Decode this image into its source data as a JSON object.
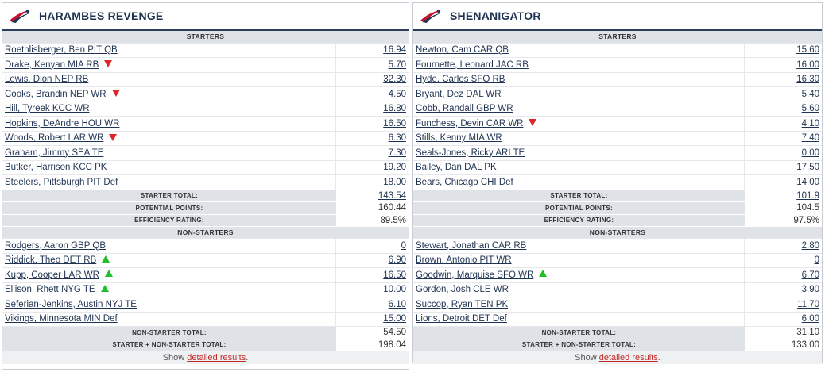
{
  "icons": {
    "team_logo": "swoosh-logo-icon",
    "status_down": "red-down-triangle-icon",
    "status_up": "green-up-triangle-icon"
  },
  "colors": {
    "navy": "#1f3352",
    "section_bg": "#dfe3e8",
    "down": "#e0262d",
    "up": "#1fbf2a",
    "link_red": "#c32a2a"
  },
  "left": {
    "team_name": "HARAMBES REVENGE",
    "starters_label": "STARTERS",
    "starters": [
      {
        "name": "Roethlisberger, Ben PIT QB",
        "points": "16.94",
        "status": ""
      },
      {
        "name": "Drake, Kenyan MIA RB",
        "points": "5.70",
        "status": "down"
      },
      {
        "name": "Lewis, Dion NEP RB",
        "points": "32.30",
        "status": ""
      },
      {
        "name": "Cooks, Brandin NEP WR",
        "points": "4.50",
        "status": "down"
      },
      {
        "name": "Hill, Tyreek KCC WR",
        "points": "16.80",
        "status": ""
      },
      {
        "name": "Hopkins, DeAndre HOU WR",
        "points": "16.50",
        "status": ""
      },
      {
        "name": "Woods, Robert LAR WR",
        "points": "6.30",
        "status": "down"
      },
      {
        "name": "Graham, Jimmy SEA TE",
        "points": "7.30",
        "status": ""
      },
      {
        "name": "Butker, Harrison KCC PK",
        "points": "19.20",
        "status": ""
      },
      {
        "name": "Steelers, Pittsburgh PIT Def",
        "points": "18.00",
        "status": ""
      }
    ],
    "starter_total_label": "STARTER TOTAL:",
    "starter_total": "143.54",
    "potential_label": "POTENTIAL POINTS:",
    "potential": "160.44",
    "efficiency_label": "EFFICIENCY RATING:",
    "efficiency": "89.5%",
    "nonstarters_label": "NON-STARTERS",
    "nonstarters": [
      {
        "name": "Rodgers, Aaron GBP QB",
        "points": "0",
        "status": ""
      },
      {
        "name": "Riddick, Theo DET RB",
        "points": "6.90",
        "status": "up"
      },
      {
        "name": "Kupp, Cooper LAR WR",
        "points": "16.50",
        "status": "up"
      },
      {
        "name": "Ellison, Rhett NYG TE",
        "points": "10.00",
        "status": "up"
      },
      {
        "name": "Seferian-Jenkins, Austin NYJ TE",
        "points": "6.10",
        "status": ""
      },
      {
        "name": "Vikings, Minnesota MIN Def",
        "points": "15.00",
        "status": ""
      }
    ],
    "nonstarter_total_label": "NON-STARTER TOTAL:",
    "nonstarter_total": "54.50",
    "combined_label": "STARTER + NON-STARTER TOTAL:",
    "combined_total": "198.04",
    "footer_prefix": "Show ",
    "footer_link": "detailed results",
    "footer_suffix": "."
  },
  "right": {
    "team_name": "SHENANIGATOR",
    "starters_label": "STARTERS",
    "starters": [
      {
        "name": "Newton, Cam CAR QB",
        "points": "15.60",
        "status": ""
      },
      {
        "name": "Fournette, Leonard JAC RB",
        "points": "16.00",
        "status": ""
      },
      {
        "name": "Hyde, Carlos SFO RB",
        "points": "16.30",
        "status": ""
      },
      {
        "name": "Bryant, Dez DAL WR",
        "points": "5.40",
        "status": ""
      },
      {
        "name": "Cobb, Randall GBP WR",
        "points": "5.60",
        "status": ""
      },
      {
        "name": "Funchess, Devin CAR WR",
        "points": "4.10",
        "status": "down"
      },
      {
        "name": "Stills, Kenny MIA WR",
        "points": "7.40",
        "status": ""
      },
      {
        "name": "Seals-Jones, Ricky ARI TE",
        "points": "0.00",
        "status": ""
      },
      {
        "name": "Bailey, Dan DAL PK",
        "points": "17.50",
        "status": ""
      },
      {
        "name": "Bears, Chicago CHI Def",
        "points": "14.00",
        "status": ""
      }
    ],
    "starter_total_label": "STARTER TOTAL:",
    "starter_total": "101.9",
    "potential_label": "POTENTIAL POINTS:",
    "potential": "104.5",
    "efficiency_label": "EFFICIENCY RATING:",
    "efficiency": "97.5%",
    "nonstarters_label": "NON-STARTERS",
    "nonstarters": [
      {
        "name": "Stewart, Jonathan CAR RB",
        "points": "2.80",
        "status": ""
      },
      {
        "name": "Brown, Antonio PIT WR",
        "points": "0",
        "status": ""
      },
      {
        "name": "Goodwin, Marquise SFO WR",
        "points": "6.70",
        "status": "up"
      },
      {
        "name": "Gordon, Josh CLE WR",
        "points": "3.90",
        "status": ""
      },
      {
        "name": "Succop, Ryan TEN PK",
        "points": "11.70",
        "status": ""
      },
      {
        "name": "Lions, Detroit DET Def",
        "points": "6.00",
        "status": ""
      }
    ],
    "nonstarter_total_label": "NON-STARTER TOTAL:",
    "nonstarter_total": "31.10",
    "combined_label": "STARTER + NON-STARTER TOTAL:",
    "combined_total": "133.00",
    "footer_prefix": "Show ",
    "footer_link": "detailed results",
    "footer_suffix": "."
  }
}
